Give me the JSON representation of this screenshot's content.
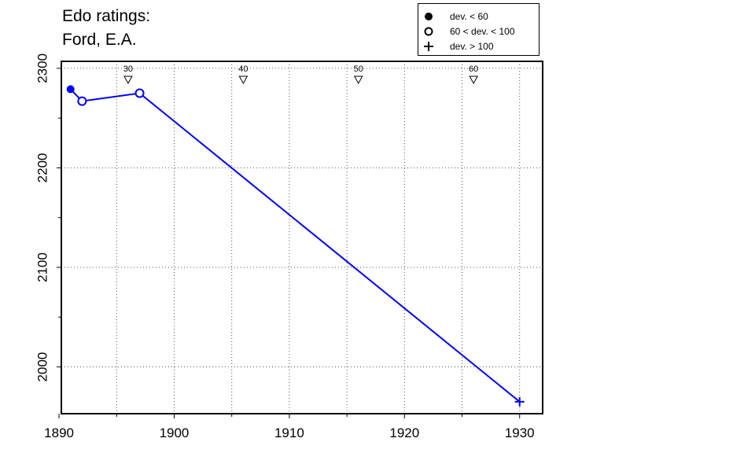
{
  "title_lines": [
    "Edo ratings:",
    "Ford, E.A."
  ],
  "legend": {
    "position": "top-right",
    "items": [
      {
        "symbol": "filled-circle",
        "label": "dev. < 60"
      },
      {
        "symbol": "open-circle",
        "label": "60 < dev. < 100"
      },
      {
        "symbol": "plus",
        "label": "dev. > 100"
      }
    ]
  },
  "chart_data": {
    "type": "line",
    "title": "Edo ratings: Ford, E.A.",
    "xlabel": "",
    "ylabel": "",
    "xlim": [
      1890.2,
      1932.0
    ],
    "ylim": [
      1953,
      2307
    ],
    "x_ticks": [
      1890,
      1900,
      1910,
      1920,
      1930
    ],
    "x_minor_ticks": [
      1895,
      1905,
      1915,
      1925
    ],
    "y_ticks": [
      2000,
      2100,
      2200,
      2300
    ],
    "y_minor_ticks": [
      2050,
      2150,
      2250
    ],
    "grid": true,
    "line_color": "#0000ff",
    "series": [
      {
        "points": [
          {
            "x": 1891,
            "y": 2279,
            "dev": "dev. < 60"
          },
          {
            "x": 1892,
            "y": 2267,
            "dev": "60 < dev. < 100"
          },
          {
            "x": 1897,
            "y": 2275,
            "dev": "60 < dev. < 100"
          },
          {
            "x": 1930,
            "y": 1965,
            "dev": "dev. > 100"
          }
        ]
      }
    ],
    "age_markers": [
      {
        "x": 1896,
        "label": "30"
      },
      {
        "x": 1906,
        "label": "40"
      },
      {
        "x": 1916,
        "label": "50"
      },
      {
        "x": 1926,
        "label": "60"
      }
    ]
  }
}
